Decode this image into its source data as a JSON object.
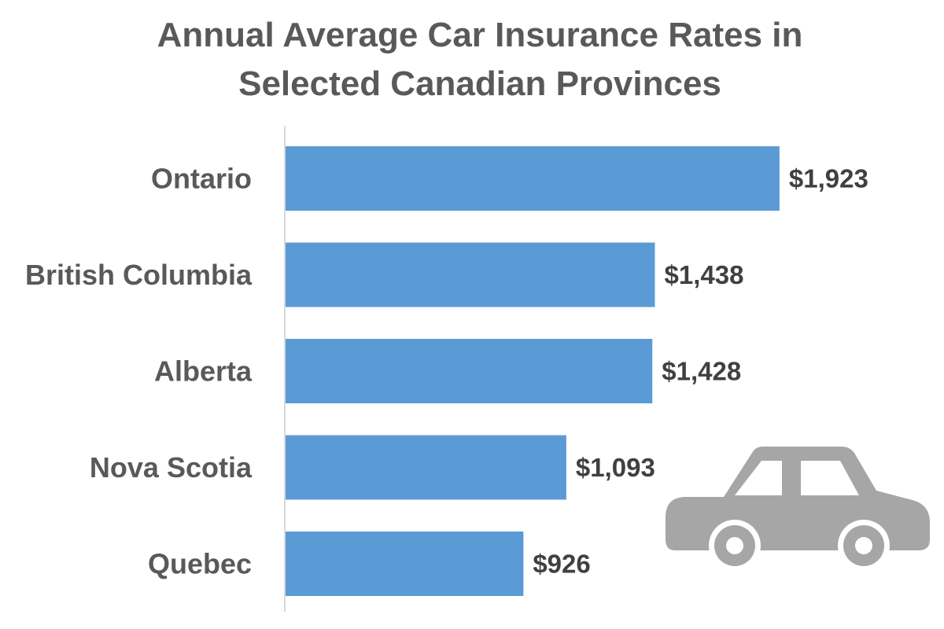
{
  "chart_data": {
    "type": "bar",
    "orientation": "horizontal",
    "title": [
      "Annual Average Car Insurance Rates in",
      "Selected Canadian Provinces"
    ],
    "categories": [
      "Ontario",
      "British Columbia",
      "Alberta",
      "Nova Scotia",
      "Quebec"
    ],
    "values": [
      1923,
      1438,
      1428,
      1093,
      926
    ],
    "value_labels": [
      "$1,923",
      "$1,438",
      "$1,428",
      "$1,093",
      "$926"
    ],
    "xlim": [
      0,
      2050
    ],
    "xlabel": "",
    "ylabel": "",
    "grid": false,
    "legend": "none",
    "bar_color": "#5b9bd5",
    "axis_color": "#d9d9d9"
  },
  "decoration": {
    "icon": "car-icon",
    "icon_color": "#a6a6a6"
  }
}
